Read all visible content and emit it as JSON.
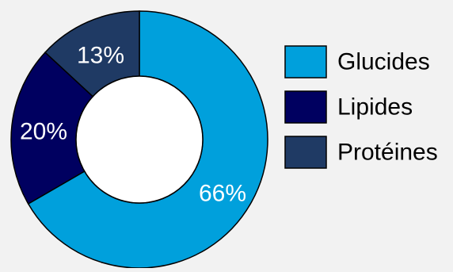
{
  "chart_data": {
    "type": "pie",
    "variant": "donut",
    "categories": [
      "Glucides",
      "Lipides",
      "Protéines"
    ],
    "values": [
      66,
      20,
      13
    ],
    "data_labels": [
      "66%",
      "20%",
      "13%"
    ],
    "colors": [
      "#00a0dc",
      "#000060",
      "#1f3a64"
    ],
    "label_colors": [
      "#ffffff",
      "#ffffff",
      "#ffffff"
    ],
    "legend_position": "right",
    "title": ""
  }
}
